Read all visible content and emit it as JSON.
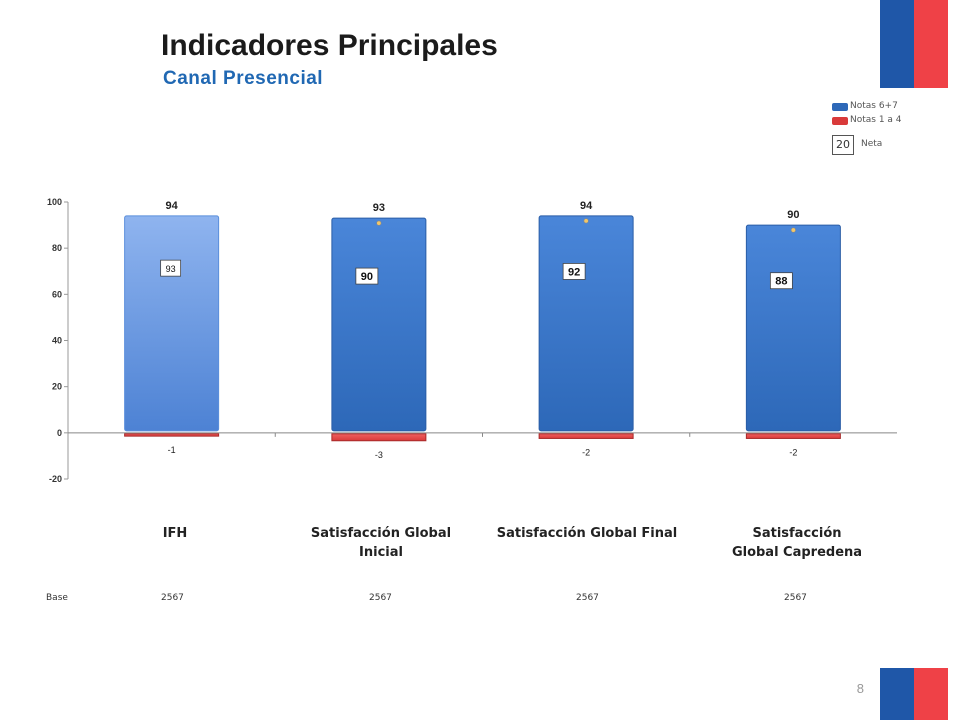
{
  "header": {
    "title": "Indicadores Principales",
    "subtitle": "Canal Presencial"
  },
  "legend": {
    "positive_label": "Notas 6+7",
    "negative_label": "Notas 1 a 4",
    "net_example": "20",
    "net_label": "Neta"
  },
  "colors": {
    "positive": "#2d68b8",
    "negative": "#d93a3a",
    "highlight": "#8fb4ef",
    "flag_blue": "#1f57a8",
    "flag_red": "#ef4147"
  },
  "chart_data": {
    "type": "bar",
    "categories": [
      "IFH",
      "Satisfacción Global Inicial",
      "Satisfacción Global Final",
      "Satisfacción Global Capredena"
    ],
    "category_lines": [
      [
        "IFH"
      ],
      [
        "Satisfacción Global",
        "Inicial"
      ],
      [
        "Satisfacción Global Final"
      ],
      [
        "Satisfacción",
        "Global Capredena"
      ]
    ],
    "series": [
      {
        "name": "Notas 6+7",
        "values": [
          94,
          93,
          94,
          90
        ]
      },
      {
        "name": "Notas 1 a 4",
        "values": [
          -1,
          -3,
          -2,
          -2
        ]
      }
    ],
    "net": [
      93,
      90,
      92,
      88
    ],
    "ylim": [
      -20,
      100
    ],
    "yticks": [
      -20,
      0,
      20,
      40,
      60,
      80,
      100
    ],
    "legend_position": "top-right",
    "grid": false
  },
  "base": {
    "label": "Base",
    "values": [
      "2567",
      "2567",
      "2567",
      "2567"
    ]
  },
  "footer": {
    "page_number": "8"
  }
}
